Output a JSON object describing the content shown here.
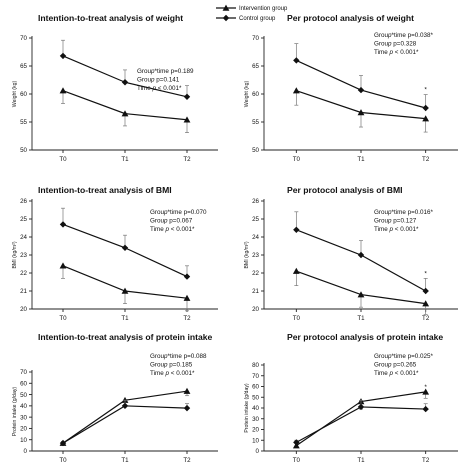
{
  "legend": {
    "intervention": "Intervention group",
    "control": "Control group"
  },
  "chart_data": [
    {
      "type": "line",
      "title": "Intention-to-treat analysis of weight",
      "ylabel": "Weight (kg)",
      "categories": [
        "T0",
        "T1",
        "T2"
      ],
      "ylim": [
        50,
        70
      ],
      "yticks": [
        50,
        55,
        60,
        65,
        70
      ],
      "stats": [
        "Group*time p=0.189",
        "Group p=0.141",
        "Time p < 0.001*"
      ],
      "series": [
        {
          "name": "Intervention group",
          "marker": "triangle",
          "values": [
            60.6,
            56.5,
            55.4
          ],
          "err": [
            2.3,
            2.2,
            2.3
          ]
        },
        {
          "name": "Control group",
          "marker": "diamond",
          "values": [
            66.8,
            62.1,
            59.5
          ],
          "err": [
            2.8,
            2.2,
            2.0
          ]
        }
      ],
      "sig": [
        false,
        false,
        false
      ]
    },
    {
      "type": "line",
      "title": "Per protocol analysis of weight",
      "ylabel": "Weight (kg)",
      "categories": [
        "T0",
        "T1",
        "T2"
      ],
      "ylim": [
        50,
        70
      ],
      "yticks": [
        50,
        55,
        60,
        65,
        70
      ],
      "stats": [
        "Group*time p=0.038*",
        "Group p=0.328",
        "Time p < 0.001*"
      ],
      "series": [
        {
          "name": "Intervention group",
          "marker": "triangle",
          "values": [
            60.6,
            56.7,
            55.6
          ],
          "err": [
            2.6,
            2.6,
            2.4
          ]
        },
        {
          "name": "Control group",
          "marker": "diamond",
          "values": [
            66.0,
            60.7,
            57.5
          ],
          "err": [
            3.0,
            2.6,
            2.4
          ]
        }
      ],
      "sig": [
        false,
        false,
        true
      ]
    },
    {
      "type": "line",
      "title": "Intention-to-treat analysis of BMI",
      "ylabel": "BMI (kg/m²)",
      "categories": [
        "T0",
        "T1",
        "T2"
      ],
      "ylim": [
        20,
        26
      ],
      "yticks": [
        20,
        21,
        22,
        23,
        24,
        25,
        26
      ],
      "stats": [
        "Group*time p=0.070",
        "Group p=0.067",
        "Time p < 0.001*"
      ],
      "series": [
        {
          "name": "Intervention group",
          "marker": "triangle",
          "values": [
            22.4,
            21.0,
            20.6
          ],
          "err": [
            0.7,
            0.7,
            0.7
          ]
        },
        {
          "name": "Control group",
          "marker": "diamond",
          "values": [
            24.7,
            23.4,
            21.8
          ],
          "err": [
            0.9,
            0.7,
            0.6
          ]
        }
      ],
      "sig": [
        false,
        false,
        false
      ]
    },
    {
      "type": "line",
      "title": "Per protocol analysis of BMI",
      "ylabel": "BMI (kg/m²)",
      "categories": [
        "T0",
        "T1",
        "T2"
      ],
      "ylim": [
        20,
        26
      ],
      "yticks": [
        20,
        21,
        22,
        23,
        24,
        25,
        26
      ],
      "stats": [
        "Group*time p=0.016*",
        "Group p=0.127",
        "Time p < 0.001*"
      ],
      "series": [
        {
          "name": "Intervention group",
          "marker": "triangle",
          "values": [
            22.1,
            20.8,
            20.3
          ],
          "err": [
            0.8,
            0.7,
            0.6
          ]
        },
        {
          "name": "Control group",
          "marker": "diamond",
          "values": [
            24.4,
            23.0,
            21.0
          ],
          "err": [
            1.0,
            0.8,
            0.7
          ]
        }
      ],
      "sig": [
        false,
        false,
        true
      ]
    },
    {
      "type": "line",
      "title": "Intention-to-treat analysis of protein intake",
      "ylabel": "Protein intake (g/day)",
      "categories": [
        "T0",
        "T1",
        "T2"
      ],
      "ylim": [
        0,
        70
      ],
      "yticks": [
        0,
        10,
        20,
        30,
        40,
        50,
        60,
        70
      ],
      "stats": [
        "Group*time p=0.088",
        "Group p=0.185",
        "Time p < 0.001*"
      ],
      "series": [
        {
          "name": "Intervention group",
          "marker": "triangle",
          "values": [
            7,
            45,
            53
          ],
          "err": [
            1.5,
            6,
            4
          ]
        },
        {
          "name": "Control group",
          "marker": "diamond",
          "values": [
            7,
            40,
            38
          ],
          "err": [
            1.5,
            5,
            4
          ]
        }
      ],
      "sig": [
        false,
        false,
        false
      ]
    },
    {
      "type": "line",
      "title": "Per protocol analysis of protein intake",
      "ylabel": "Protein intake (g/day)",
      "categories": [
        "T0",
        "T1",
        "T2"
      ],
      "ylim": [
        0,
        80
      ],
      "yticks": [
        0,
        10,
        20,
        30,
        40,
        50,
        60,
        70,
        80
      ],
      "stats": [
        "Group*time p=0.025*",
        "Group p=0.265",
        "Time p < 0.001*"
      ],
      "series": [
        {
          "name": "Intervention group",
          "marker": "triangle",
          "values": [
            5,
            46,
            55
          ],
          "err": [
            2,
            7,
            6
          ]
        },
        {
          "name": "Control group",
          "marker": "diamond",
          "values": [
            8,
            41,
            39
          ],
          "err": [
            2,
            6,
            5
          ]
        }
      ],
      "sig": [
        false,
        false,
        true
      ]
    }
  ]
}
